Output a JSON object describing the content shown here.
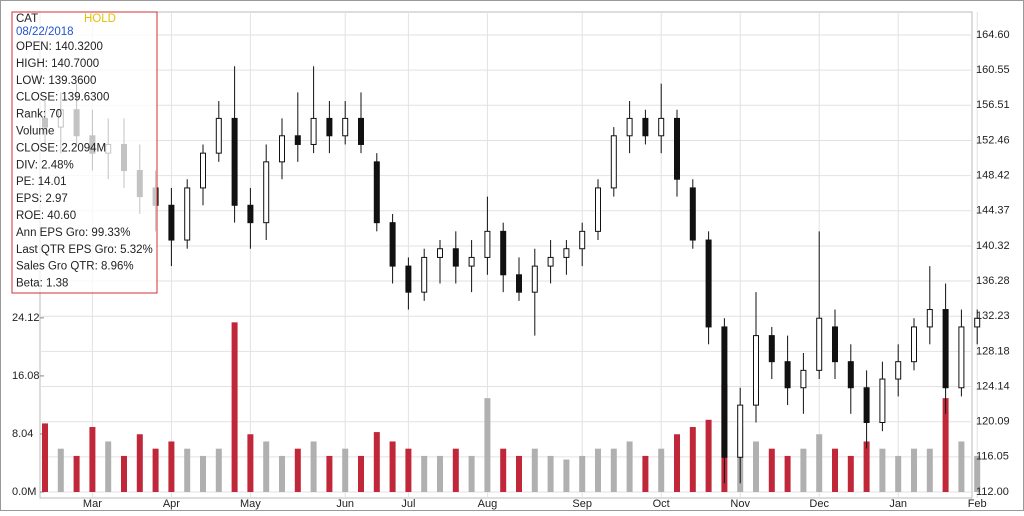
{
  "chart_data": {
    "type": "candlestick",
    "info": {
      "symbol": "CAT",
      "rating": "HOLD",
      "date": "08/22/2018",
      "lines": [
        "OPEN: 140.3200",
        "HIGH: 140.7000",
        "LOW: 139.3600",
        "CLOSE: 139.6300",
        "Rank: 70",
        "Volume",
        "CLOSE: 2.2094M",
        "DIV: 2.48%",
        "PE: 14.01",
        "EPS: 2.97",
        "ROE: 40.60",
        "Ann EPS Gro: 99.33%",
        "Last QTR EPS Gro: 5.32%",
        "Sales Gro QTR: 8.96%",
        "Beta: 1.38"
      ]
    },
    "categories": [
      null,
      null,
      null,
      "Mar",
      null,
      null,
      null,
      null,
      "Apr",
      null,
      null,
      null,
      null,
      "May",
      null,
      null,
      null,
      null,
      null,
      "Jun",
      null,
      null,
      null,
      "Jul",
      null,
      null,
      null,
      null,
      "Aug",
      null,
      null,
      null,
      null,
      null,
      "Sep",
      null,
      null,
      null,
      null,
      "Oct",
      null,
      null,
      null,
      null,
      "Nov",
      null,
      null,
      null,
      null,
      "Dec",
      null,
      null,
      null,
      null,
      "Jan",
      null,
      null,
      null,
      null,
      "Feb"
    ],
    "open": [
      155,
      154,
      156,
      153,
      151,
      152,
      149,
      147,
      145,
      141,
      147,
      151,
      155,
      145,
      143,
      150,
      153,
      152,
      155,
      153,
      155,
      150,
      143,
      138,
      135,
      139,
      140,
      138,
      139,
      142,
      137,
      135,
      138,
      139,
      140,
      142,
      147,
      153,
      155,
      153,
      155,
      147,
      141,
      131,
      116,
      122,
      130,
      127,
      124,
      126,
      131,
      127,
      124,
      120,
      125,
      127,
      131,
      133,
      124,
      131
    ],
    "high": [
      157,
      158,
      159,
      156,
      155,
      155,
      152,
      149,
      147,
      148,
      152,
      157,
      161,
      147,
      152,
      155,
      158,
      161,
      157,
      157,
      158,
      151,
      144,
      139,
      140,
      141,
      142,
      141,
      146,
      143,
      139,
      140,
      141,
      141,
      143,
      148,
      154,
      157,
      156,
      159,
      156,
      148,
      142,
      132,
      124,
      135,
      131,
      130,
      128,
      142,
      133,
      129,
      126,
      127,
      129,
      132,
      138,
      136,
      133,
      133
    ],
    "low": [
      152,
      151,
      152,
      149,
      148,
      147,
      144,
      142,
      138,
      140,
      145,
      150,
      143,
      140,
      141,
      148,
      150,
      151,
      151,
      152,
      151,
      142,
      136,
      133,
      134,
      136,
      136,
      135,
      137,
      135,
      134,
      130,
      136,
      137,
      138,
      141,
      146,
      151,
      152,
      151,
      146,
      140,
      129,
      113,
      113,
      120,
      125,
      122,
      121,
      125,
      125,
      121,
      117,
      119,
      123,
      126,
      129,
      121,
      123,
      129
    ],
    "close": [
      154,
      156,
      153,
      151,
      152,
      149,
      146,
      145,
      141,
      147,
      151,
      155,
      145,
      143,
      150,
      153,
      152,
      155,
      153,
      155,
      152,
      143,
      138,
      135,
      139,
      140,
      138,
      139,
      142,
      137,
      135,
      138,
      139,
      140,
      142,
      147,
      153,
      155,
      153,
      155,
      148,
      141,
      131,
      116,
      122,
      130,
      127,
      124,
      126,
      132,
      127,
      124,
      120,
      125,
      127,
      131,
      133,
      124,
      131,
      132
    ],
    "volume": [
      9.5,
      6,
      5,
      9,
      7,
      5,
      8,
      6,
      7,
      6,
      5,
      6,
      23.5,
      8,
      7,
      5,
      6,
      7,
      5,
      6,
      5,
      8.3,
      7,
      6,
      5,
      5,
      6,
      5,
      13,
      6,
      5,
      6,
      5,
      4.5,
      5,
      6,
      6,
      7,
      5,
      6,
      8,
      9,
      10,
      15,
      9,
      7,
      6,
      5,
      6,
      8,
      6,
      5,
      7,
      6,
      5,
      6,
      6,
      13,
      7,
      5
    ],
    "candle_color": "#111111",
    "down_color": "#c0283a",
    "up_color": "#b0b0b0",
    "ylim": [
      112,
      164.6
    ],
    "yticks": [
      {
        "value": 164.6,
        "label": "164.60"
      },
      160.55,
      156.51,
      152.46,
      148.42,
      144.37,
      140.32,
      136.28,
      132.23,
      128.18,
      124.14,
      120.09,
      116.05,
      {
        "value": 112,
        "label": "112.00"
      }
    ],
    "y2lim": [
      0,
      63.3
    ],
    "y2ticks": [
      {
        "value": 0,
        "label": "0.0M"
      },
      8.04,
      16.08,
      24.12
    ],
    "grid": true
  }
}
